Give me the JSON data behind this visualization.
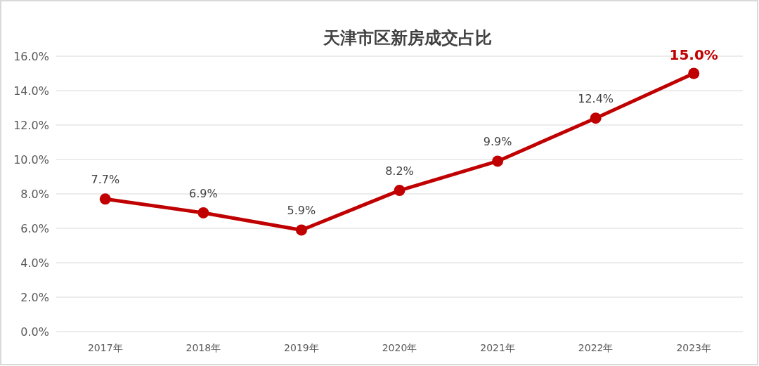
{
  "chart_data": {
    "type": "line",
    "title": "天津市区新房成交占比",
    "categories": [
      "2017年",
      "2018年",
      "2019年",
      "2020年",
      "2021年",
      "2022年",
      "2023年"
    ],
    "series": [
      {
        "color": "#c00000",
        "values": [
          7.7,
          6.9,
          5.9,
          8.2,
          9.9,
          12.4,
          15.0
        ],
        "value_labels": [
          "7.7%",
          "6.9%",
          "5.9%",
          "8.2%",
          "9.9%",
          "12.4%",
          "15.0%"
        ]
      }
    ],
    "ylim": [
      0,
      16
    ],
    "yticks": [
      {
        "value": 0,
        "label": "0.0%"
      },
      {
        "value": 2,
        "label": "2.0%"
      },
      {
        "value": 4,
        "label": "4.0%"
      },
      {
        "value": 6,
        "label": "6.0%"
      },
      {
        "value": 8,
        "label": "8.0%"
      },
      {
        "value": 10,
        "label": "10.0%"
      },
      {
        "value": 12,
        "label": "12.0%"
      },
      {
        "value": 14,
        "label": "14.0%"
      },
      {
        "value": 16,
        "label": "16.0%"
      }
    ],
    "grid": "y",
    "marker": "circle",
    "line_style": "solid"
  }
}
